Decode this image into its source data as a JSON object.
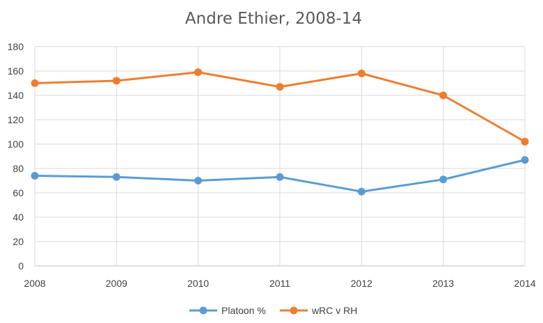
{
  "chart_data": {
    "type": "line",
    "title": "Andre Ethier, 2008-14",
    "xlabel": "",
    "ylabel": "",
    "x": [
      "2008",
      "2009",
      "2010",
      "2011",
      "2012",
      "2013",
      "2014"
    ],
    "ylim": [
      0,
      180
    ],
    "yticks": [
      "0",
      "20",
      "40",
      "60",
      "80",
      "100",
      "120",
      "140",
      "160",
      "180"
    ],
    "grid": true,
    "legend_position": "bottom",
    "series": [
      {
        "name": "Platoon %",
        "color": "#5b9bd5",
        "values": [
          74,
          73,
          70,
          73,
          61,
          71,
          87
        ]
      },
      {
        "name": "wRC v RH",
        "color": "#ed7d31",
        "values": [
          150,
          152,
          159,
          147,
          158,
          140,
          102
        ]
      }
    ]
  }
}
